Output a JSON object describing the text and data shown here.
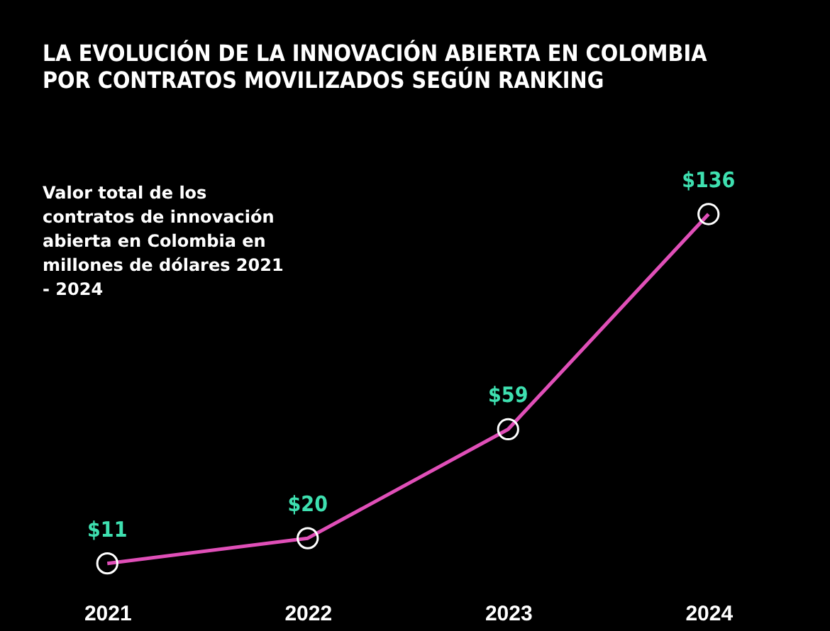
{
  "chart_data": {
    "type": "line",
    "title": "LA EVOLUCIÓN DE LA INNOVACIÓN ABIERTA EN COLOMBIA POR CONTRATOS MOVILIZADOS SEGÚN RANKING",
    "annotations": [
      "Valor total  de los contratos de innovación abierta en Colombia en millones de dólares 2021 - 2024"
    ],
    "categories": [
      "2021",
      "2022",
      "2023",
      "2024"
    ],
    "marker": "circle",
    "series": [
      {
        "color": "#e04fb8",
        "values": [
          11,
          20,
          59,
          136
        ],
        "value_labels": [
          "$11",
          "$20",
          "$59",
          "$136"
        ]
      }
    ]
  }
}
